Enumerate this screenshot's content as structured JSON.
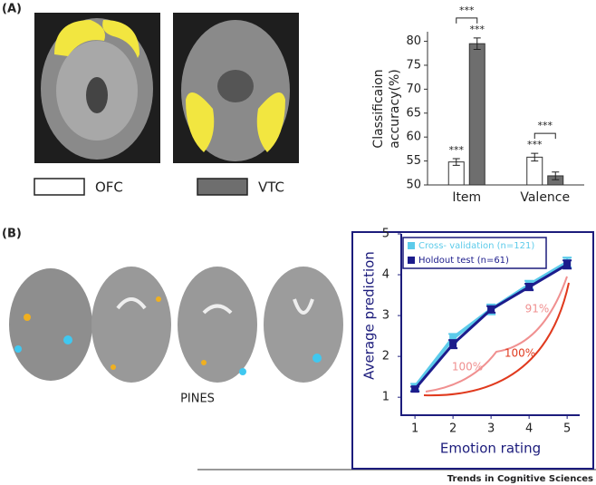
{
  "panel_labels": [
    "(A)",
    "(B)"
  ],
  "brain_caption": "PINES",
  "footer": "Trends in Cognitive Sciences",
  "chart_data": [
    {
      "type": "bar",
      "ylabel": [
        "Classificaion",
        "accuracy(%)"
      ],
      "categories": [
        "Item",
        "Valence"
      ],
      "series": [
        {
          "name": "OFC",
          "color": "#ffffff",
          "values": [
            54.8,
            55.8
          ],
          "errors": [
            0.7,
            0.8
          ],
          "annotations": [
            "***",
            "***"
          ]
        },
        {
          "name": "VTC",
          "color": "#6e6e6e",
          "values": [
            79.5,
            51.9
          ],
          "errors": [
            1.2,
            0.8
          ],
          "annotations": [
            "***",
            null
          ]
        }
      ],
      "bracket_labels": [
        "***",
        "***"
      ],
      "ylim": [
        50,
        82
      ],
      "yticks": [
        50,
        55,
        60,
        65,
        70,
        75,
        80
      ]
    },
    {
      "type": "line",
      "xlabel": "Emotion rating",
      "ylabel": "Average prediction",
      "x": [
        1,
        2,
        3,
        4,
        5
      ],
      "series": [
        {
          "name": "Cross- validation (n=121)",
          "color": "#5ccbea",
          "values": [
            1.25,
            2.45,
            3.15,
            3.75,
            4.3
          ],
          "errors": [
            0.08,
            0.1,
            0.12,
            0.1,
            0.12
          ]
        },
        {
          "name": "Holdout test (n=61)",
          "color": "#1c1c8c",
          "values": [
            1.2,
            2.3,
            3.15,
            3.7,
            4.25
          ],
          "errors": [
            0.06,
            0.1,
            0.08,
            0.08,
            0.1
          ]
        }
      ],
      "annotations": [
        {
          "text": "100%",
          "color": "#f09090"
        },
        {
          "text": "91%",
          "color": "#f09090"
        },
        {
          "text": "100%",
          "color": "#e03a1e"
        }
      ],
      "xlim": [
        0.64,
        5.33
      ],
      "ylim": [
        0.56,
        5
      ],
      "xticks": [
        1,
        2,
        3,
        4,
        5
      ],
      "yticks": [
        1,
        2,
        3,
        4,
        5
      ]
    }
  ]
}
